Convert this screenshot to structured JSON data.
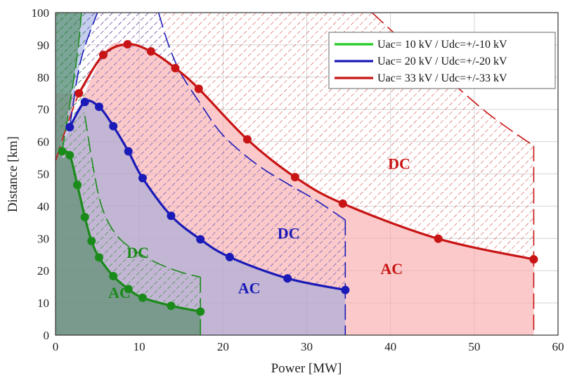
{
  "chart_data": {
    "type": "line",
    "xlabel": "Power [MW]",
    "ylabel": "Distance [km]",
    "xlim": [
      0,
      60
    ],
    "ylim": [
      0,
      100
    ],
    "xticks": [
      0,
      10,
      20,
      30,
      40,
      50,
      60
    ],
    "yticks": [
      0,
      10,
      20,
      30,
      40,
      50,
      60,
      70,
      80,
      90,
      100
    ],
    "grid": true,
    "legend_position": "top-right",
    "colors": {
      "green": "#1a8a1a",
      "blue": "#1a1ab8",
      "red": "#c81414",
      "legend_green": "#22cc22"
    },
    "series": [
      {
        "name": "Uac= 10 kV / Udc=+/-10 kV",
        "color_key": "green",
        "ac_limit": [
          [
            0.8,
            57.0
          ],
          [
            1.7,
            55.8
          ],
          [
            2.6,
            46.6
          ],
          [
            3.5,
            36.6
          ],
          [
            4.3,
            29.2
          ],
          [
            5.2,
            24.1
          ],
          [
            6.9,
            18.3
          ],
          [
            8.7,
            14.3
          ],
          [
            10.4,
            11.6
          ],
          [
            13.8,
            9.1
          ],
          [
            17.3,
            7.3
          ]
        ],
        "ac_label": "AC",
        "ac_label_at": [
          6.3,
          11.5
        ],
        "dc_limit": [
          [
            0.8,
            57.0
          ],
          [
            2.5,
            85.0
          ],
          [
            3.1,
            100.0
          ]
        ],
        "dc_boundary": [
          [
            3.5,
            68.0
          ],
          [
            4.5,
            52.0
          ],
          [
            5.5,
            40.0
          ],
          [
            7.0,
            32.0
          ],
          [
            9.0,
            27.0
          ],
          [
            12.0,
            22.5
          ],
          [
            15.0,
            19.5
          ],
          [
            17.3,
            18.0
          ]
        ],
        "dc_label": "DC",
        "dc_label_at": [
          8.5,
          24.0
        ],
        "pmax": 17.3
      },
      {
        "name": "Uac= 20 kV / Udc=+/-20 kV",
        "color_key": "blue",
        "ac_limit": [
          [
            1.7,
            64.5
          ],
          [
            3.5,
            72.3
          ],
          [
            5.2,
            70.8
          ],
          [
            6.9,
            64.8
          ],
          [
            8.7,
            57.0
          ],
          [
            10.4,
            48.7
          ],
          [
            13.8,
            37.0
          ],
          [
            17.3,
            29.7
          ],
          [
            20.8,
            24.2
          ],
          [
            27.7,
            17.6
          ],
          [
            34.6,
            14.0
          ]
        ],
        "ac_label": "AC",
        "ac_label_at": [
          21.8,
          13.0
        ],
        "dc_limit": [
          [
            1.7,
            64.5
          ],
          [
            3.0,
            85.0
          ],
          [
            5.0,
            100.0
          ]
        ],
        "dc_boundary": [
          [
            12.3,
            100.0
          ],
          [
            13.5,
            90.0
          ],
          [
            15.0,
            81.0
          ],
          [
            17.5,
            71.0
          ],
          [
            20.0,
            62.0
          ],
          [
            24.0,
            53.0
          ],
          [
            28.0,
            46.5
          ],
          [
            31.0,
            42.0
          ],
          [
            34.6,
            35.7
          ]
        ],
        "dc_label": "DC",
        "dc_label_at": [
          26.5,
          30.0
        ],
        "pmax": 34.6
      },
      {
        "name": "Uac= 33 kV / Udc=+/-33 kV",
        "color_key": "red",
        "ac_limit": [
          [
            2.8,
            75.0
          ],
          [
            5.7,
            86.9
          ],
          [
            8.6,
            90.2
          ],
          [
            11.4,
            88.0
          ],
          [
            14.3,
            82.8
          ],
          [
            17.1,
            76.4
          ],
          [
            22.9,
            60.7
          ],
          [
            28.6,
            49.0
          ],
          [
            34.3,
            40.8
          ],
          [
            45.7,
            29.9
          ],
          [
            57.1,
            23.5
          ]
        ],
        "ac_label": "AC",
        "ac_label_at": [
          38.8,
          19.0
        ],
        "dc_limit": [
          [
            0.0,
            54.0
          ],
          [
            1.5,
            66.0
          ],
          [
            2.8,
            75.0
          ]
        ],
        "dc_boundary": [
          [
            37.8,
            100.0
          ],
          [
            42.0,
            90.0
          ],
          [
            47.0,
            79.0
          ],
          [
            52.0,
            68.0
          ],
          [
            57.1,
            58.7
          ]
        ],
        "dc_label": "DC",
        "dc_label_at": [
          39.7,
          51.5
        ],
        "pmax": 57.1
      }
    ]
  }
}
